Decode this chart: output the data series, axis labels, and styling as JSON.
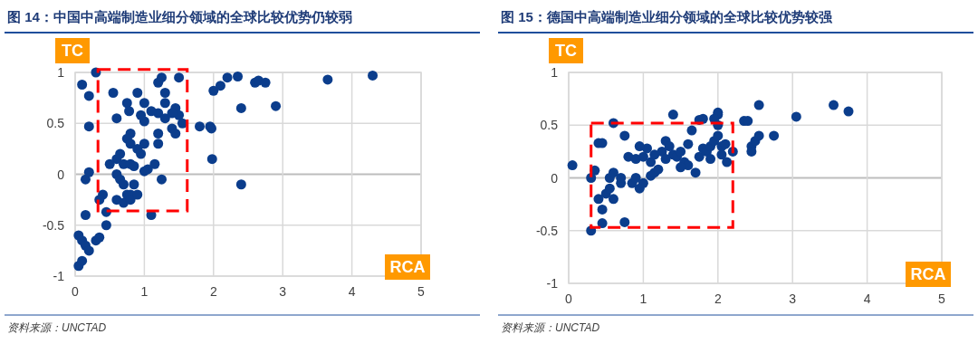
{
  "chart_data": [
    {
      "type": "scatter",
      "title": "图 14：中国中高端制造业细分领域的全球比较优势仍较弱",
      "xlabel": "RCA",
      "ylabel": "TC",
      "xlim": [
        0,
        5
      ],
      "ylim": [
        -1,
        1
      ],
      "xticks": [
        0,
        1,
        2,
        3,
        4,
        5
      ],
      "yticks": [
        -1,
        -0.5,
        0,
        0.5,
        1
      ],
      "grid": true,
      "marker": "circle",
      "annotations": [
        "资料来源：UNCTAD"
      ],
      "series": [
        {
          "color": "#0b3d8c",
          "x": [
            0.1,
            0.2,
            0.3,
            0.55,
            0.2,
            0.15,
            0.2,
            0.15,
            0.05,
            0.1,
            0.15,
            0.2,
            0.05,
            0.1,
            0.3,
            0.35,
            0.45,
            0.45,
            0.4,
            0.35,
            0.6,
            0.75,
            0.78,
            0.9,
            1.0,
            1.2,
            1.25,
            1.3,
            1.5,
            1.2,
            1.1,
            1.3,
            1.45,
            1.5,
            1.55,
            1.4,
            1.45,
            1.2,
            1.0,
            0.95,
            0.8,
            0.75,
            0.8,
            1.0,
            0.95,
            0.9,
            0.65,
            0.6,
            0.7,
            0.8,
            0.85,
            0.5,
            0.6,
            0.65,
            0.7,
            0.75,
            0.8,
            0.6,
            0.7,
            0.8,
            0.9,
            0.85,
            1.05,
            1.15,
            1.0,
            1.25,
            1.2,
            1.1,
            1.3,
            1.4,
            1.8,
            1.95,
            1.97,
            1.98,
            2.0,
            2.1,
            2.2,
            2.35,
            2.4,
            2.6,
            2.65,
            2.75,
            2.9,
            2.4,
            3.65,
            4.3
          ],
          "values": [
            0.88,
            0.77,
            1.0,
            0.8,
            0.47,
            -0.05,
            0.02,
            -0.4,
            -0.6,
            -0.65,
            -0.7,
            -0.75,
            -0.9,
            -0.85,
            -0.65,
            -0.62,
            -0.5,
            -0.37,
            -0.2,
            -0.25,
            0.55,
            0.7,
            0.62,
            0.8,
            0.7,
            0.9,
            0.95,
            0.8,
            0.95,
            0.6,
            0.62,
            0.55,
            0.65,
            0.58,
            0.5,
            0.45,
            0.4,
            0.4,
            0.52,
            0.58,
            0.4,
            0.35,
            0.3,
            0.3,
            0.2,
            0.25,
            0.2,
            0.15,
            0.1,
            0.1,
            0.08,
            0.1,
            0.0,
            -0.05,
            -0.1,
            -0.2,
            -0.2,
            -0.25,
            -0.28,
            -0.25,
            -0.2,
            -0.1,
            0.05,
            0.1,
            0.03,
            -0.05,
            0.3,
            -0.4,
            0.7,
            0.6,
            0.47,
            0.47,
            0.45,
            0.15,
            0.82,
            0.87,
            0.95,
            0.96,
            0.65,
            0.9,
            0.92,
            0.9,
            0.67,
            -0.1,
            0.93,
            0.97
          ]
        }
      ]
    },
    {
      "type": "scatter",
      "title": "图 15：德国中高端制造业细分领域的全球比较优势较强",
      "xlabel": "RCA",
      "ylabel": "TC",
      "xlim": [
        0,
        5
      ],
      "ylim": [
        -1,
        1
      ],
      "xticks": [
        0,
        1,
        2,
        3,
        4,
        5
      ],
      "yticks": [
        -1,
        -0.5,
        0,
        0.5,
        1
      ],
      "grid": true,
      "marker": "circle",
      "annotations": [
        "资料来源：UNCTAD"
      ],
      "series": [
        {
          "color": "#0b3d8c",
          "x": [
            0.05,
            0.3,
            0.3,
            0.35,
            0.4,
            0.45,
            0.4,
            0.45,
            0.45,
            0.5,
            0.55,
            0.6,
            0.55,
            0.6,
            0.7,
            0.7,
            0.6,
            0.75,
            0.75,
            0.85,
            0.9,
            0.95,
            1.0,
            0.8,
            0.9,
            1.0,
            1.05,
            1.1,
            1.15,
            1.2,
            1.1,
            1.15,
            1.25,
            1.3,
            1.35,
            1.4,
            1.4,
            1.45,
            1.5,
            1.55,
            1.6,
            1.6,
            1.65,
            1.7,
            1.75,
            1.75,
            1.8,
            1.8,
            1.85,
            1.9,
            1.9,
            1.95,
            2.0,
            2.0,
            2.0,
            2.05,
            2.05,
            2.1,
            2.12,
            2.2,
            1.5,
            1.3,
            0.95,
            2.35,
            2.4,
            2.45,
            2.5,
            2.55,
            2.55,
            2.45,
            2.75,
            3.05,
            3.55,
            3.75,
            2.0,
            1.95
          ],
          "values": [
            0.12,
            -0.5,
            0.0,
            0.07,
            0.33,
            0.33,
            -0.2,
            -0.43,
            -0.3,
            -0.15,
            -0.1,
            -0.2,
            0.0,
            0.05,
            -0.05,
            0.0,
            0.52,
            0.4,
            -0.42,
            -0.05,
            0.0,
            -0.1,
            -0.05,
            0.2,
            0.18,
            0.2,
            0.28,
            0.02,
            0.05,
            0.08,
            0.15,
            0.22,
            0.25,
            0.35,
            0.3,
            0.22,
            0.6,
            0.2,
            0.25,
            0.15,
            0.12,
            0.32,
            0.45,
            0.05,
            0.2,
            0.55,
            0.56,
            0.28,
            0.25,
            0.3,
            0.18,
            0.35,
            0.4,
            0.62,
            0.5,
            0.22,
            0.3,
            0.32,
            0.15,
            0.25,
            0.1,
            0.18,
            0.3,
            0.54,
            0.54,
            0.3,
            0.35,
            0.4,
            0.69,
            0.25,
            0.4,
            0.58,
            0.69,
            0.63,
            0.6,
            0.56
          ]
        }
      ]
    }
  ]
}
